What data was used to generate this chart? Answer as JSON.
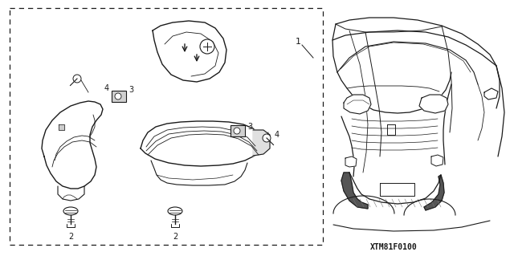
{
  "bg_color": "#ffffff",
  "line_color": "#1a1a1a",
  "ref_code": "XTM81F0100",
  "figsize": [
    6.4,
    3.19
  ],
  "dpi": 100
}
